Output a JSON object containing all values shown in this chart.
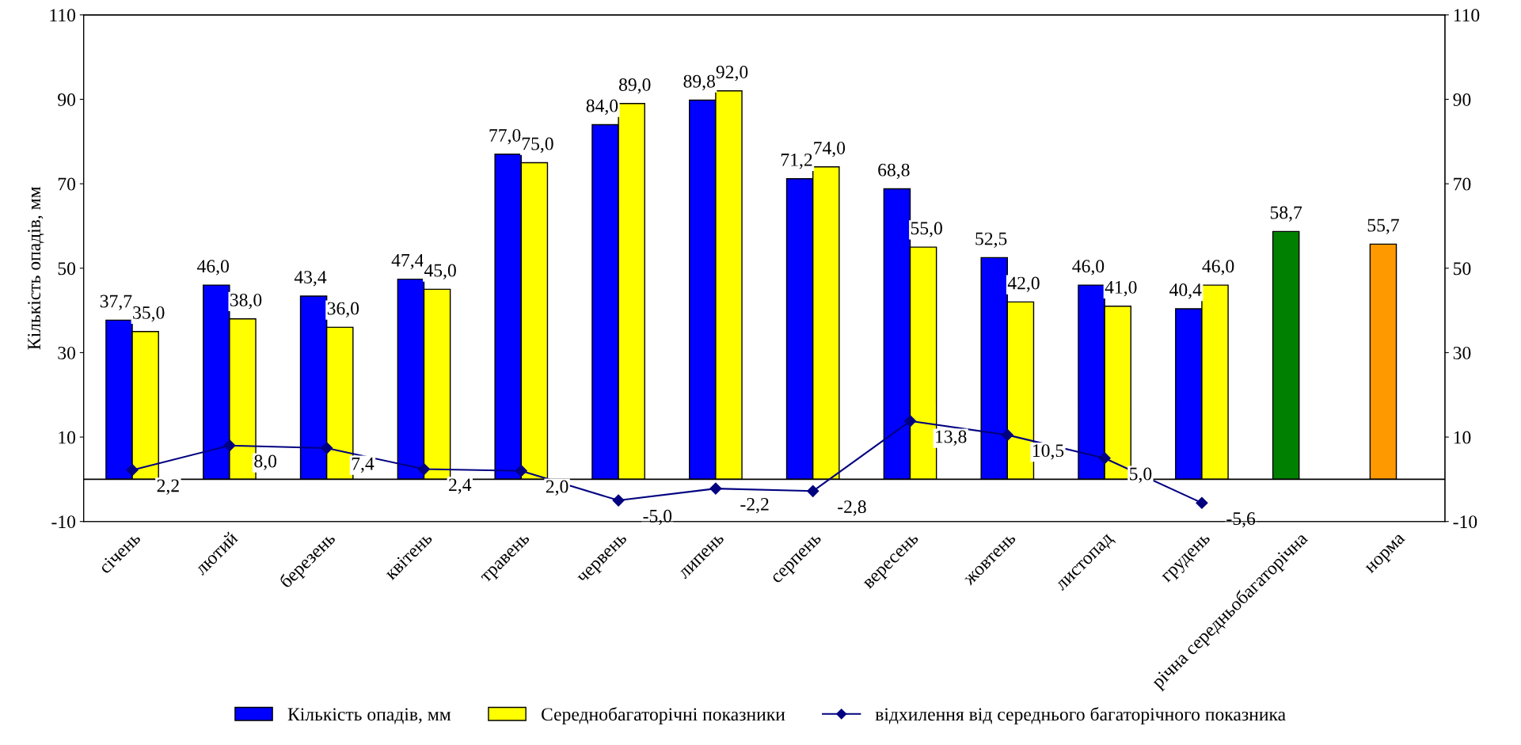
{
  "chart_data": {
    "type": "bar",
    "ylabel": "Кількість опадів, мм",
    "categories": [
      "січень",
      "лютий",
      "березень",
      "квітень",
      "травень",
      "червень",
      "липень",
      "серпень",
      "вересень",
      "жовтень",
      "листопад",
      "грудень",
      "річна середньобагаторічна",
      "норма"
    ],
    "series": [
      {
        "name": "Кількість опадів, мм",
        "color": "#0000ff",
        "colors": [
          "#0000ff",
          "#0000ff",
          "#0000ff",
          "#0000ff",
          "#0000ff",
          "#0000ff",
          "#0000ff",
          "#0000ff",
          "#0000ff",
          "#0000ff",
          "#0000ff",
          "#0000ff",
          "#008000",
          "#ff9900"
        ],
        "values": [
          37.7,
          46.0,
          43.4,
          47.4,
          77.0,
          84.0,
          89.8,
          71.2,
          68.8,
          52.5,
          46.0,
          40.4,
          58.7,
          55.7
        ],
        "value_labels": [
          "37,7",
          "46,0",
          "43,4",
          "47,4",
          "77,0",
          "84,0",
          "89,8",
          "71,2",
          "68,8",
          "52,5",
          "46,0",
          "40,4",
          "58,7",
          "55,7"
        ]
      },
      {
        "name": "Середнобагаторічні показники",
        "color": "#ffff00",
        "values": [
          35.0,
          38.0,
          36.0,
          45.0,
          75.0,
          89.0,
          92.0,
          74.0,
          55.0,
          42.0,
          41.0,
          46.0,
          null,
          null
        ],
        "value_labels": [
          "35,0",
          "38,0",
          "36,0",
          "45,0",
          "75,0",
          "89,0",
          "92,0",
          "74,0",
          "55,0",
          "42,0",
          "41,0",
          "46,0",
          null,
          null
        ]
      },
      {
        "name": "відхилення від середнього багаторічного показника",
        "type": "line",
        "color": "#000080",
        "marker": "diamond",
        "line_style": "solid",
        "values": [
          2.2,
          8.0,
          7.4,
          2.4,
          2.0,
          -5.0,
          -2.2,
          -2.8,
          13.8,
          10.5,
          5.0,
          -5.6,
          null,
          null
        ],
        "value_labels": [
          "2,2",
          "8,0",
          "7,4",
          "2,4",
          "2,0",
          "-5,0",
          "-2,2",
          "-2,8",
          "13,8",
          "10,5",
          "5,0",
          "-5,6",
          null,
          null
        ]
      }
    ],
    "ylim": [
      -10,
      110
    ],
    "yticks": [
      -10,
      10,
      30,
      50,
      70,
      90,
      110
    ],
    "y2lim": [
      -10,
      110
    ],
    "y2ticks": [
      -10,
      10,
      30,
      50,
      70,
      90,
      110
    ],
    "ref_lines": [
      {
        "axis": "y",
        "value": 0,
        "color": "#000000",
        "line_style": "solid"
      }
    ],
    "grid": false,
    "legend": "bottom"
  }
}
